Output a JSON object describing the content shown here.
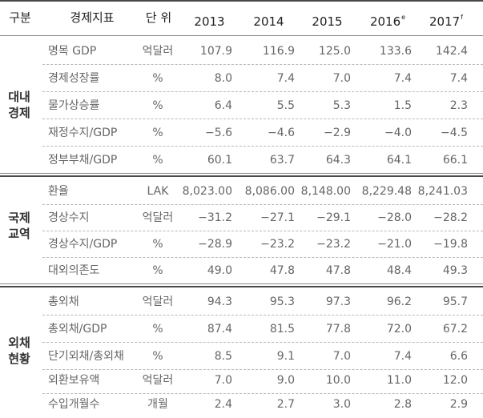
{
  "header": {
    "category": "구분",
    "indicator": "경제지표",
    "unit": "단 위",
    "years": [
      {
        "year": "2013",
        "mark": ""
      },
      {
        "year": "2014",
        "mark": ""
      },
      {
        "year": "2015",
        "mark": ""
      },
      {
        "year": "2016",
        "mark": "e"
      },
      {
        "year": "2017",
        "mark": "f"
      }
    ]
  },
  "groups": [
    {
      "label_line1": "대내",
      "label_line2": "경제",
      "rows": [
        {
          "indicator": "명목 GDP",
          "unit": "억달러",
          "values": [
            "107.9",
            "116.9",
            "125.0",
            "133.6",
            "142.4"
          ]
        },
        {
          "indicator": "경제성장률",
          "unit": "%",
          "values": [
            "8.0",
            "7.4",
            "7.0",
            "7.4",
            "7.4"
          ]
        },
        {
          "indicator": "물가상승률",
          "unit": "%",
          "values": [
            "6.4",
            "5.5",
            "5.3",
            "1.5",
            "2.3"
          ]
        },
        {
          "indicator": "재정수지/GDP",
          "unit": "%",
          "values": [
            "−5.6",
            "−4.6",
            "−2.9",
            "−4.0",
            "−4.5"
          ]
        },
        {
          "indicator": "정부부채/GDP",
          "unit": "%",
          "values": [
            "60.1",
            "63.7",
            "64.3",
            "64.1",
            "66.1"
          ]
        }
      ]
    },
    {
      "label_line1": "국제",
      "label_line2": "교역",
      "rows": [
        {
          "indicator": "환율",
          "unit": "LAK",
          "values": [
            "8,023.00",
            "8,086.00",
            "8,148.00",
            "8,229.48",
            "8,241.03"
          ]
        },
        {
          "indicator": "경상수지",
          "unit": "억달러",
          "values": [
            "−31.2",
            "−27.1",
            "−29.1",
            "−28.0",
            "−28.2"
          ]
        },
        {
          "indicator": "경상수지/GDP",
          "unit": "%",
          "values": [
            "−28.9",
            "−23.2",
            "−23.2",
            "−21.0",
            "−19.8"
          ]
        },
        {
          "indicator": "대외의존도",
          "unit": "%",
          "values": [
            "49.0",
            "47.8",
            "47.8",
            "48.4",
            "49.3"
          ]
        }
      ]
    },
    {
      "label_line1": "외채",
      "label_line2": "현황",
      "rows": [
        {
          "indicator": "총외채",
          "unit": "억달러",
          "values": [
            "94.3",
            "95.3",
            "97.3",
            "96.2",
            "95.7"
          ]
        },
        {
          "indicator": "총외채/GDP",
          "unit": "%",
          "values": [
            "87.4",
            "81.5",
            "77.8",
            "72.0",
            "67.2"
          ]
        },
        {
          "indicator": "단기외채/총외채",
          "unit": "%",
          "values": [
            "8.5",
            "9.1",
            "7.0",
            "7.4",
            "6.6"
          ]
        },
        {
          "indicator": "외환보유액",
          "unit": "억달러",
          "values": [
            "7.0",
            "9.0",
            "10.0",
            "11.0",
            "12.0"
          ]
        },
        {
          "indicator": "수입개월수",
          "unit": "개월",
          "values": [
            "2.4",
            "2.7",
            "3.0",
            "2.8",
            "2.9"
          ]
        }
      ]
    }
  ]
}
